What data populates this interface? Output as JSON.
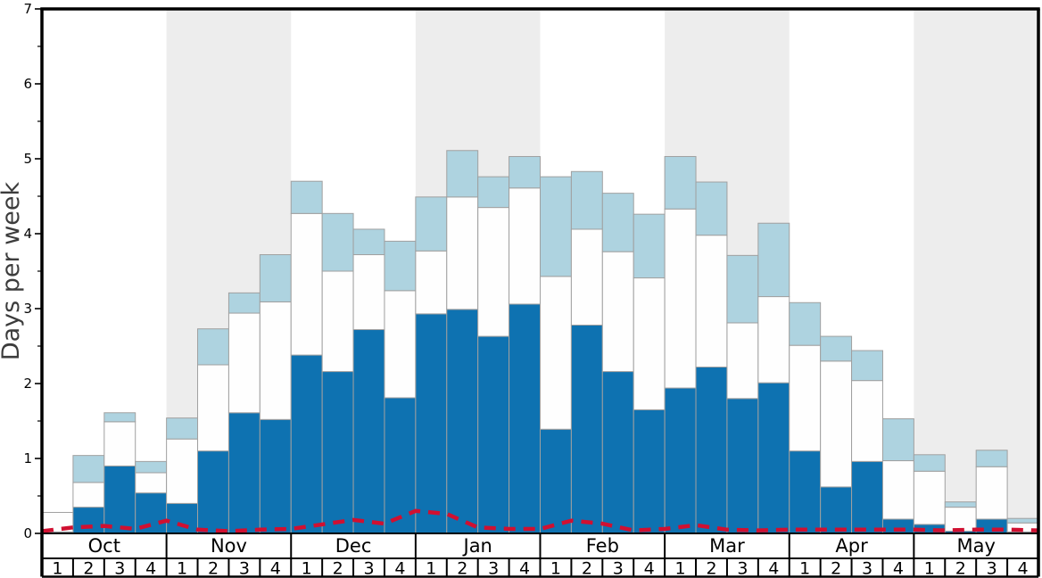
{
  "chart_data": {
    "type": "bar",
    "stacked": true,
    "title": "",
    "axis": {
      "ylabel": "Days per week",
      "ylim": [
        0,
        7
      ],
      "y_major_ticks": [
        0,
        1,
        2,
        3,
        4,
        5,
        6,
        7
      ],
      "y_minor_tick_step": 0.5,
      "grid": false,
      "legend": "none"
    },
    "months": [
      {
        "label": "Oct",
        "shaded": false
      },
      {
        "label": "Nov",
        "shaded": true
      },
      {
        "label": "Dec",
        "shaded": false
      },
      {
        "label": "Jan",
        "shaded": true
      },
      {
        "label": "Feb",
        "shaded": false
      },
      {
        "label": "Mar",
        "shaded": true
      },
      {
        "label": "Apr",
        "shaded": false
      },
      {
        "label": "May",
        "shaded": true
      }
    ],
    "weeks_per_month": 4,
    "week_labels": [
      "1",
      "2",
      "3",
      "4"
    ],
    "series": [
      {
        "name": "dark-blue-lower",
        "color": "#0e72b1",
        "cumulative_top": [
          0.02,
          0.35,
          0.9,
          0.54,
          0.4,
          1.1,
          1.61,
          1.52,
          2.38,
          2.16,
          2.72,
          1.81,
          2.93,
          2.99,
          2.63,
          3.06,
          1.39,
          2.78,
          2.16,
          1.65,
          1.94,
          2.22,
          1.8,
          2.01,
          1.1,
          0.62,
          0.96,
          0.19,
          0.12,
          0.03,
          0.19,
          0.02
        ]
      },
      {
        "name": "white-middle",
        "color": "#fefefe",
        "cumulative_top": [
          0.28,
          0.68,
          1.49,
          0.81,
          1.26,
          2.25,
          2.94,
          3.09,
          4.27,
          3.5,
          3.72,
          3.24,
          3.77,
          4.49,
          4.35,
          4.61,
          3.43,
          4.06,
          3.76,
          3.41,
          4.33,
          3.98,
          2.81,
          3.16,
          2.51,
          2.3,
          2.04,
          0.97,
          0.83,
          0.35,
          0.89,
          0.14
        ]
      },
      {
        "name": "light-blue-upper",
        "color": "#aed3e0",
        "cumulative_top": [
          0.28,
          1.04,
          1.61,
          0.96,
          1.54,
          2.73,
          3.21,
          3.72,
          4.7,
          4.27,
          4.06,
          3.9,
          4.49,
          5.11,
          4.76,
          5.03,
          4.76,
          4.83,
          4.54,
          4.26,
          5.03,
          4.69,
          3.71,
          4.14,
          3.08,
          2.63,
          2.44,
          1.53,
          1.05,
          0.42,
          1.11,
          0.2
        ]
      }
    ],
    "red_dashed_line": {
      "name": "red-dashed-line",
      "color": "#d01031",
      "style": "dashed",
      "x_positions": "week_boundaries",
      "values": [
        0.03,
        0.08,
        0.1,
        0.06,
        0.17,
        0.05,
        0.03,
        0.05,
        0.06,
        0.12,
        0.18,
        0.13,
        0.3,
        0.26,
        0.08,
        0.06,
        0.06,
        0.17,
        0.13,
        0.04,
        0.06,
        0.11,
        0.05,
        0.04,
        0.05,
        0.05,
        0.05,
        0.05,
        0.05,
        0.04,
        0.05,
        0.05,
        0.04
      ]
    },
    "colors": {
      "shaded_month_band": "#ededed",
      "bar_border": "#a0a0a0",
      "axis_line": "#000000",
      "tick_label": "#000000",
      "ylabel_text": "#3c3c3c",
      "row_border": "#000000",
      "background": "#ffffff"
    }
  }
}
